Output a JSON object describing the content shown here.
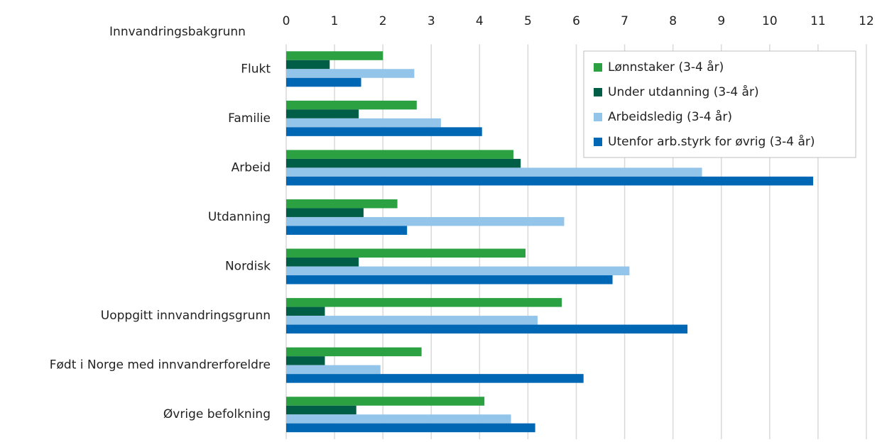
{
  "chart_data": {
    "type": "barh",
    "ylabel": "Innvandringsbakgrunn",
    "categories": [
      "Flukt",
      "Familie",
      "Arbeid",
      "Utdanning",
      "Nordisk",
      "Uoppgitt innvandringsgrunn",
      "Født i Norge med innvandrerforeldre",
      "Øvrige befolkning"
    ],
    "series": [
      {
        "name": "Lønnstaker (3-4 år)",
        "color": "#2ca142",
        "values": [
          2.0,
          2.7,
          4.7,
          2.3,
          4.95,
          5.7,
          2.8,
          4.1
        ]
      },
      {
        "name": "Under utdanning (3-4 år)",
        "color": "#005e46",
        "values": [
          0.9,
          1.5,
          4.85,
          1.6,
          1.5,
          0.8,
          0.8,
          1.45
        ]
      },
      {
        "name": "Arbeidsledig (3-4 år)",
        "color": "#93c5ea",
        "values": [
          2.65,
          3.2,
          8.6,
          5.75,
          7.1,
          5.2,
          1.95,
          4.65
        ]
      },
      {
        "name": "Utenfor arb.styrk for øvrig (3-4 år)",
        "color": "#0067b4",
        "values": [
          1.55,
          4.05,
          10.9,
          2.5,
          6.75,
          8.3,
          6.15,
          5.15
        ]
      }
    ],
    "xlim": [
      0,
      12
    ],
    "xticks": [
      0,
      1,
      2,
      3,
      4,
      5,
      6,
      7,
      8,
      9,
      10,
      11,
      12
    ],
    "grid": true,
    "legend": "upper right"
  }
}
